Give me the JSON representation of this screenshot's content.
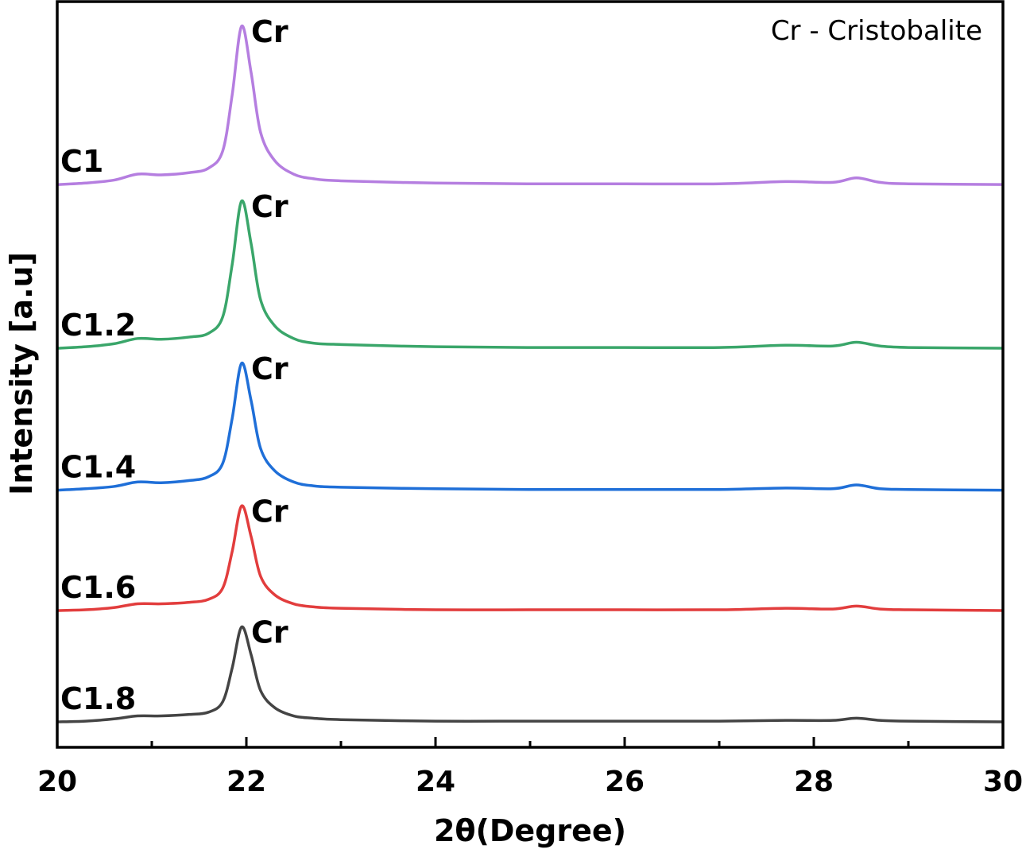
{
  "chart_data": {
    "type": "line",
    "title": "",
    "xlabel": "2θ(Degree)",
    "ylabel": "Intensity [a.u]",
    "xlim": [
      20,
      30
    ],
    "ylim": [
      0,
      100
    ],
    "x_ticks": [
      "20",
      "22",
      "24",
      "26",
      "28",
      "30"
    ],
    "x_minor_ticks": [
      21,
      23,
      25,
      27,
      29
    ],
    "grid": false,
    "annotation": "Cr - Cristobalite",
    "annotation_placement": "top-right",
    "peak_label": "Cr",
    "x": [
      20,
      20.3,
      20.6,
      20.85,
      21.1,
      21.4,
      21.6,
      21.75,
      21.85,
      21.95,
      22.05,
      22.15,
      22.3,
      22.5,
      22.7,
      23,
      24,
      25,
      26,
      27,
      27.7,
      28.2,
      28.45,
      28.7,
      29,
      30
    ],
    "series": [
      {
        "name": "C1",
        "color": "#b57ee0",
        "peak_x": 21.95,
        "values": [
          75.3,
          75.5,
          75.9,
          76.7,
          76.6,
          76.9,
          77.5,
          79.8,
          87.3,
          96.5,
          90.3,
          82.3,
          78.5,
          76.7,
          76.1,
          75.8,
          75.5,
          75.4,
          75.4,
          75.4,
          75.7,
          75.6,
          76.2,
          75.6,
          75.4,
          75.3
        ]
      },
      {
        "name": "C1.2",
        "color": "#3aa66a",
        "peak_x": 21.95,
        "values": [
          53.4,
          53.6,
          54.0,
          54.7,
          54.6,
          54.9,
          55.4,
          57.6,
          64.6,
          73.1,
          67.4,
          59.9,
          56.4,
          54.7,
          54.1,
          53.9,
          53.6,
          53.5,
          53.5,
          53.5,
          53.8,
          53.7,
          54.2,
          53.7,
          53.5,
          53.4
        ]
      },
      {
        "name": "C1.4",
        "color": "#1f6fd8",
        "peak_x": 21.95,
        "values": [
          34.4,
          34.6,
          34.9,
          35.5,
          35.4,
          35.7,
          36.2,
          38.0,
          44.0,
          51.4,
          46.4,
          40.0,
          37.0,
          35.5,
          35.0,
          34.8,
          34.6,
          34.5,
          34.5,
          34.5,
          34.7,
          34.6,
          35.1,
          34.6,
          34.5,
          34.4
        ]
      },
      {
        "name": "C1.6",
        "color": "#e23d3d",
        "peak_x": 21.95,
        "values": [
          18.3,
          18.4,
          18.7,
          19.2,
          19.2,
          19.4,
          19.8,
          21.3,
          26.2,
          32.3,
          28.2,
          22.9,
          20.4,
          19.2,
          18.8,
          18.6,
          18.4,
          18.4,
          18.4,
          18.4,
          18.6,
          18.5,
          18.9,
          18.5,
          18.4,
          18.3
        ]
      },
      {
        "name": "C1.8",
        "color": "#444444",
        "peak_x": 21.95,
        "values": [
          3.4,
          3.5,
          3.8,
          4.2,
          4.2,
          4.4,
          4.7,
          6.1,
          10.6,
          16.1,
          12.4,
          7.6,
          5.3,
          4.2,
          3.9,
          3.7,
          3.5,
          3.5,
          3.5,
          3.5,
          3.6,
          3.6,
          3.9,
          3.6,
          3.5,
          3.4
        ]
      }
    ]
  }
}
